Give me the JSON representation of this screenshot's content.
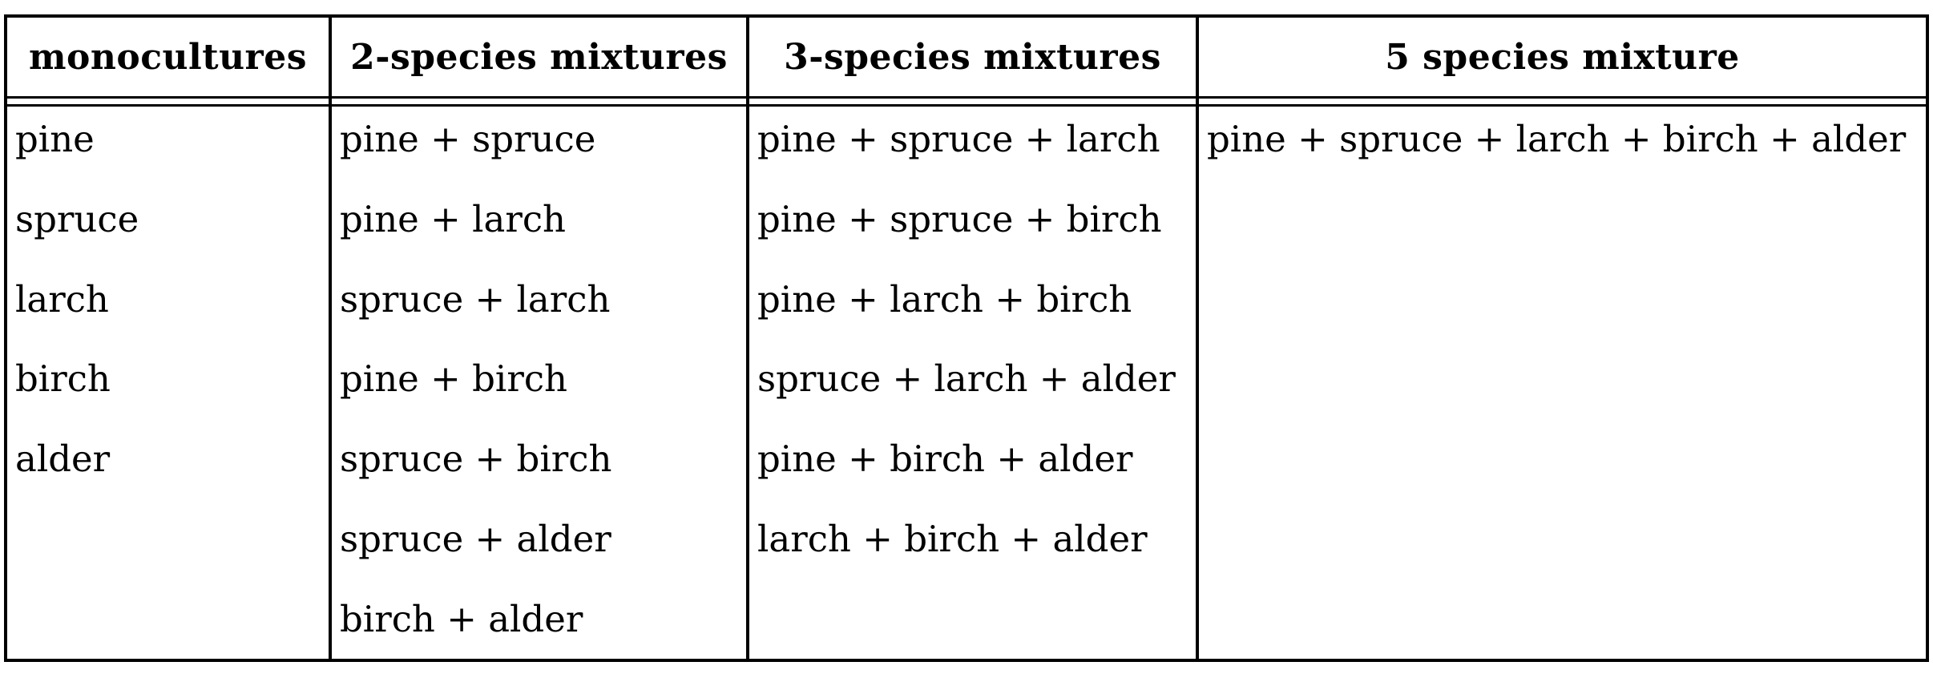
{
  "table": {
    "columns": [
      {
        "header": "monocultures",
        "rows": [
          "pine",
          "spruce",
          "larch",
          "birch",
          "alder"
        ]
      },
      {
        "header": "2-species mixtures",
        "rows": [
          "pine + spruce",
          "pine + larch",
          "spruce + larch",
          "pine + birch",
          "spruce + birch",
          "spruce + alder",
          "birch + alder"
        ]
      },
      {
        "header": "3-species mixtures",
        "rows": [
          "pine + spruce + larch",
          "pine + spruce + birch",
          "pine + larch + birch",
          "spruce + larch + alder",
          "pine + birch + alder",
          "larch + birch + alder"
        ]
      },
      {
        "header": "5 species mixture",
        "rows": [
          "pine + spruce + larch + birch + alder"
        ]
      }
    ]
  }
}
